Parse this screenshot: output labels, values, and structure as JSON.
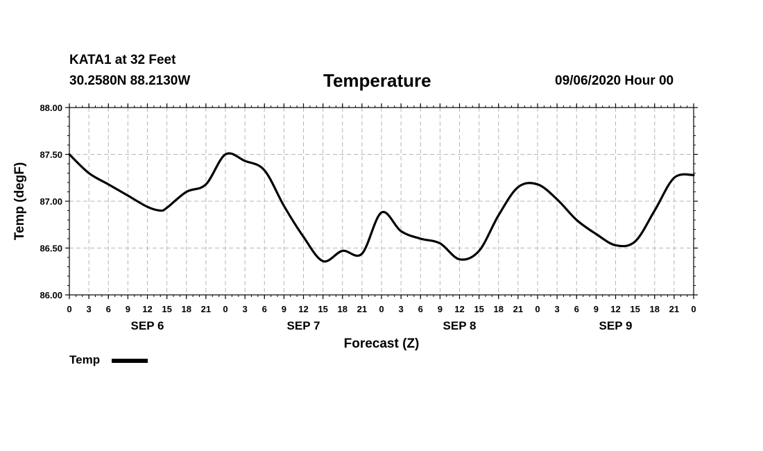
{
  "header": {
    "station": "KATA1 at 32 Feet",
    "coords": "30.2580N 88.2130W",
    "title": "Temperature",
    "datetime": "09/06/2020 Hour 00"
  },
  "legend": {
    "label": "Temp"
  },
  "chart_data": {
    "type": "line",
    "title": "Temperature",
    "xlabel": "Forecast (Z)",
    "ylabel": "Temp (degF)",
    "ylim": [
      86.0,
      88.0
    ],
    "yticks": [
      "86.00",
      "86.50",
      "87.00",
      "87.50",
      "88.00"
    ],
    "ytick_values": [
      86.0,
      86.5,
      87.0,
      87.5,
      88.0
    ],
    "xlim": [
      0,
      96
    ],
    "xticks": [
      "0",
      "3",
      "6",
      "9",
      "12",
      "15",
      "18",
      "21",
      "0",
      "3",
      "6",
      "9",
      "12",
      "15",
      "18",
      "21",
      "0",
      "3",
      "6",
      "9",
      "12",
      "15",
      "18",
      "21",
      "0",
      "3",
      "6",
      "9",
      "12",
      "15",
      "18",
      "21",
      "0"
    ],
    "xtick_step_hours": 3,
    "day_labels": [
      "SEP 6",
      "SEP 7",
      "SEP 8",
      "SEP 9"
    ],
    "grid": true,
    "series": [
      {
        "name": "Temp",
        "color": "#000000",
        "x": [
          0,
          3,
          6,
          9,
          12,
          14,
          15,
          18,
          21,
          24,
          27,
          30,
          33,
          36,
          39,
          42,
          45,
          48,
          51,
          54,
          57,
          60,
          63,
          66,
          69,
          72,
          75,
          78,
          81,
          84,
          87,
          90,
          93,
          96
        ],
        "y": [
          87.5,
          87.3,
          87.18,
          87.06,
          86.94,
          86.9,
          86.93,
          87.1,
          87.18,
          87.5,
          87.43,
          87.33,
          86.95,
          86.62,
          86.36,
          86.47,
          86.44,
          86.88,
          86.68,
          86.6,
          86.55,
          86.38,
          86.47,
          86.85,
          87.15,
          87.18,
          87.02,
          86.8,
          86.65,
          86.53,
          86.57,
          86.9,
          87.25,
          87.28
        ]
      }
    ]
  }
}
